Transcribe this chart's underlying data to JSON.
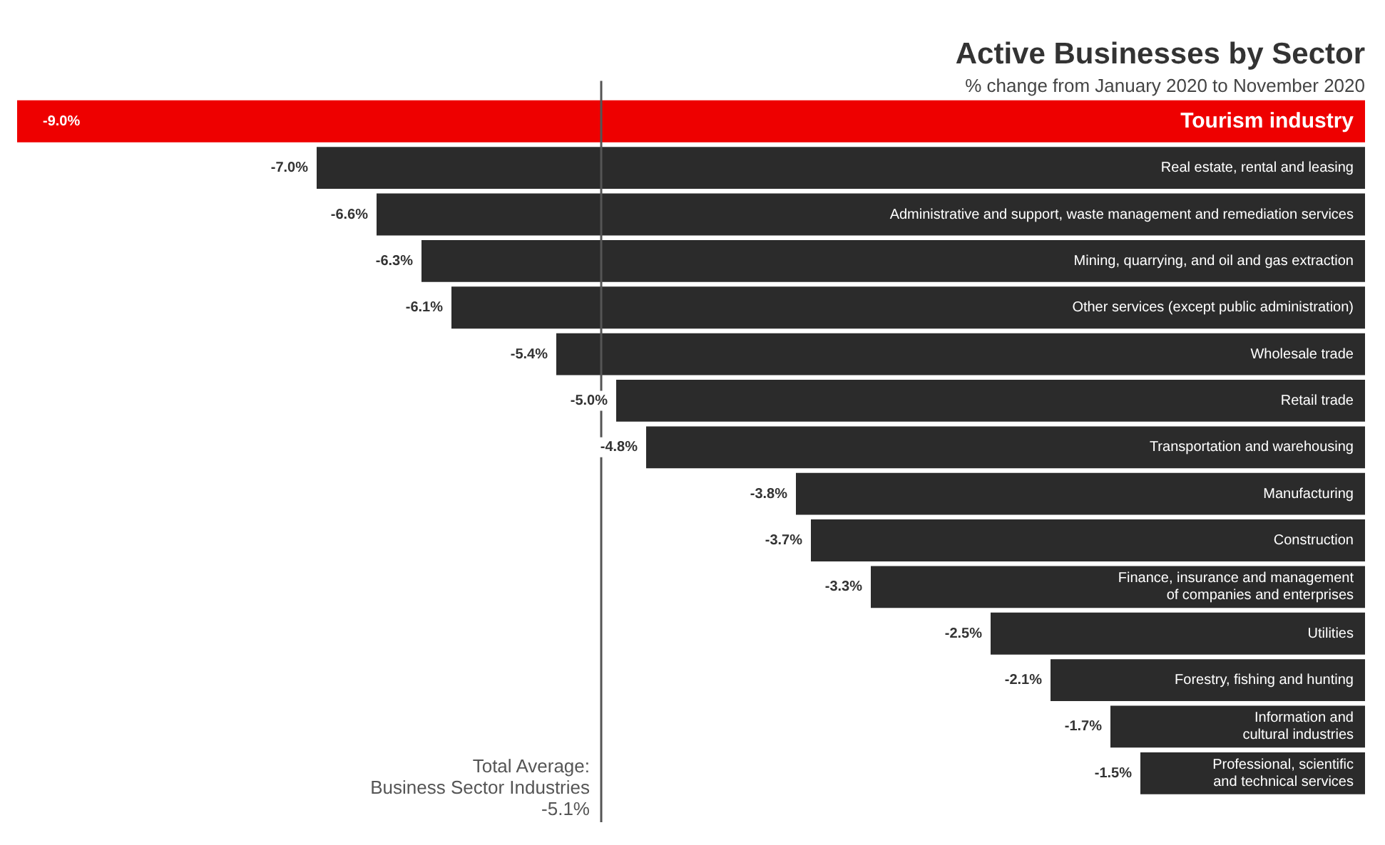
{
  "chart_data": {
    "type": "bar",
    "orientation": "horizontal",
    "title": "Active Businesses by Sector",
    "subtitle": "% change from January 2020 to November 2020",
    "categories": [
      "Tourism industry",
      "Real estate, rental and leasing",
      "Administrative and support, waste management and remediation services",
      "Mining, quarrying, and oil and gas extraction",
      "Other services (except public administration)",
      "Wholesale trade",
      "Retail trade",
      "Transportation and warehousing",
      "Manufacturing",
      "Construction",
      "Finance, insurance and management\nof companies and enterprises",
      "Utilities",
      "Forestry, fishing and hunting",
      "Information and\ncultural industries",
      "Professional, scientific\nand technical services"
    ],
    "values": [
      -9.0,
      -7.0,
      -6.6,
      -6.3,
      -6.1,
      -5.4,
      -5.0,
      -4.8,
      -3.8,
      -3.7,
      -3.3,
      -2.5,
      -2.1,
      -1.7,
      -1.5
    ],
    "value_labels": [
      "-9.0%",
      "-7.0%",
      "-6.6%",
      "-6.3%",
      "-6.1%",
      "-5.4%",
      "-5.0%",
      "-4.8%",
      "-3.8%",
      "-3.7%",
      "-3.3%",
      "-2.5%",
      "-2.1%",
      "-1.7%",
      "-1.5%"
    ],
    "colors": [
      "#ee0000",
      "#2b2b2b",
      "#2b2b2b",
      "#2b2b2b",
      "#2b2b2b",
      "#2b2b2b",
      "#2b2b2b",
      "#2b2b2b",
      "#2b2b2b",
      "#2b2b2b",
      "#2b2b2b",
      "#2b2b2b",
      "#2b2b2b",
      "#2b2b2b",
      "#2b2b2b"
    ],
    "tick_labels": "y",
    "grid": false,
    "legend": false,
    "ref_lines": [
      {
        "axis": "x",
        "value": -5.1,
        "label": "Total Average:\nBusiness Sector Industries\n-5.1%",
        "color": "#555555"
      }
    ]
  }
}
